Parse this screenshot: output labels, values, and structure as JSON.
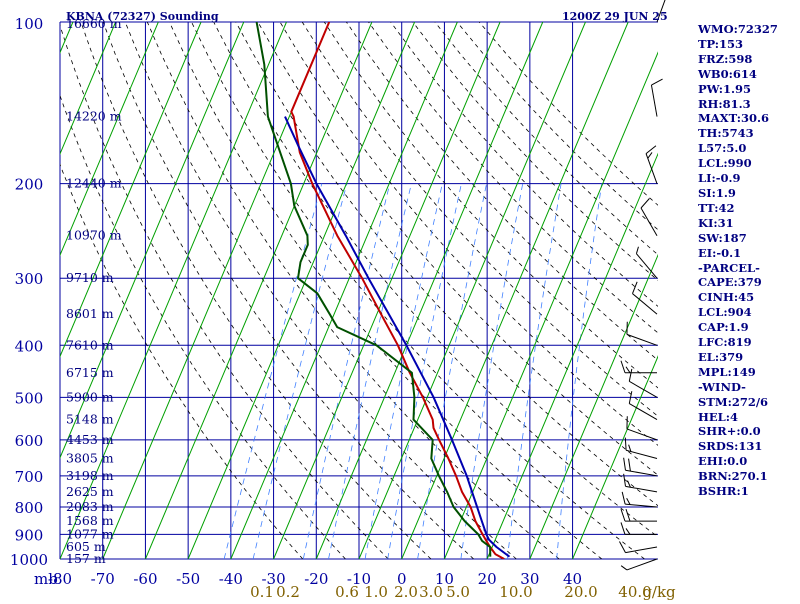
{
  "header": {
    "station": "KBNA (72327) Sounding",
    "time": "1200Z 29 JUN 25"
  },
  "colors": {
    "frame": "#0000a0",
    "isotherm": "#00a000",
    "mixing_ratio": "#4080ff",
    "dry_adiabat": "#000000",
    "temperature": "#c00000",
    "dewpoint": "#005000",
    "parcel": "#0000b0",
    "height_label": "#000080",
    "mixing_label": "#806000"
  },
  "stats": [
    "WMO:72327",
    "TP:153",
    "FRZ:598",
    "WB0:614",
    "PW:1.95",
    "RH:81.3",
    "MAXT:30.6",
    "TH:5743",
    "L57:5.0",
    "LCL:990",
    "LI:-0.9",
    "SI:1.9",
    "TT:42",
    "KI:31",
    "SW:187",
    "EI:-0.1",
    "-PARCEL-",
    "CAPE:379",
    "CINH:45",
    "LCL:904",
    "CAP:1.9",
    "LFC:819",
    "EL:379",
    "MPL:149",
    "-WIND-",
    "STM:272/6",
    "HEL:4",
    "SHR+:0.0",
    "SRDS:131",
    "EHI:0.0",
    "BRN:270.1",
    "BSHR:1"
  ],
  "chart_data": {
    "type": "line",
    "diagram": "skew-t",
    "title": "KBNA (72327) Sounding",
    "pressure_axis": {
      "unit_label": "mb",
      "ticks": [
        100,
        200,
        300,
        400,
        500,
        600,
        700,
        800,
        900,
        1000
      ],
      "range": [
        100,
        1000
      ],
      "scale": "log"
    },
    "temperature_axis": {
      "ticks": [
        -80,
        -70,
        -60,
        -50,
        -40,
        -30,
        -20,
        -10,
        0,
        10,
        20,
        30,
        40
      ],
      "labels": [
        "-80",
        "-70",
        "-60",
        "-50",
        "-40",
        "-30",
        "-20",
        "-10",
        "0",
        "10",
        "20",
        "30",
        "40"
      ]
    },
    "height_labels": [
      {
        "p": 100,
        "text": "16660 m"
      },
      {
        "p": 150,
        "text": "14220 m"
      },
      {
        "p": 200,
        "text": "12440 m"
      },
      {
        "p": 250,
        "text": "10970 m"
      },
      {
        "p": 300,
        "text": "9710 m"
      },
      {
        "p": 350,
        "text": "8601 m"
      },
      {
        "p": 400,
        "text": "7610 m"
      },
      {
        "p": 450,
        "text": "6715 m"
      },
      {
        "p": 500,
        "text": "5900 m"
      },
      {
        "p": 550,
        "text": "5148 m"
      },
      {
        "p": 600,
        "text": "4453 m"
      },
      {
        "p": 650,
        "text": "3805 m"
      },
      {
        "p": 700,
        "text": "3198 m"
      },
      {
        "p": 750,
        "text": "2625 m"
      },
      {
        "p": 800,
        "text": "2083 m"
      },
      {
        "p": 850,
        "text": "1568 m"
      },
      {
        "p": 900,
        "text": "1077 m"
      },
      {
        "p": 950,
        "text": "605 m"
      },
      {
        "p": 1000,
        "text": "157 m"
      }
    ],
    "mixing_ratio_labels": [
      "0.1",
      "0.2",
      "0.6",
      "1.0",
      "2.0",
      "3.0",
      "5.0",
      "10.0",
      "20.0",
      "40.0",
      "g/kg"
    ],
    "series": [
      {
        "key": "temperature",
        "points": [
          [
            1000,
            24
          ],
          [
            980,
            21.5
          ],
          [
            950,
            19.5
          ],
          [
            925,
            18
          ],
          [
            900,
            16.5
          ],
          [
            850,
            13.5
          ],
          [
            800,
            11
          ],
          [
            750,
            7.5
          ],
          [
            700,
            4.5
          ],
          [
            650,
            1
          ],
          [
            600,
            -3
          ],
          [
            570,
            -5.5
          ],
          [
            550,
            -6.5
          ],
          [
            500,
            -11
          ],
          [
            450,
            -16.5
          ],
          [
            400,
            -22
          ],
          [
            350,
            -29
          ],
          [
            300,
            -37
          ],
          [
            250,
            -47
          ],
          [
            200,
            -58
          ],
          [
            175,
            -64
          ],
          [
            150,
            -69
          ],
          [
            147,
            -70
          ],
          [
            130,
            -70
          ],
          [
            100,
            -70
          ]
        ]
      },
      {
        "key": "dewpoint",
        "points": [
          [
            990,
            20.5
          ],
          [
            950,
            19.5
          ],
          [
            925,
            17
          ],
          [
            900,
            15.5
          ],
          [
            850,
            11
          ],
          [
            800,
            7
          ],
          [
            750,
            4
          ],
          [
            700,
            0.5
          ],
          [
            650,
            -3
          ],
          [
            600,
            -4.5
          ],
          [
            550,
            -11
          ],
          [
            500,
            -13
          ],
          [
            450,
            -16
          ],
          [
            400,
            -27
          ],
          [
            370,
            -38
          ],
          [
            350,
            -41
          ],
          [
            320,
            -46
          ],
          [
            300,
            -52
          ],
          [
            280,
            -53
          ],
          [
            260,
            -53
          ],
          [
            250,
            -54
          ],
          [
            220,
            -60
          ],
          [
            200,
            -63
          ],
          [
            150,
            -75
          ],
          [
            120,
            -81
          ],
          [
            100,
            -87
          ]
        ]
      },
      {
        "key": "parcel",
        "points": [
          [
            990,
            25
          ],
          [
            950,
            21
          ],
          [
            920,
            18.5
          ],
          [
            900,
            17.4
          ],
          [
            850,
            15
          ],
          [
            800,
            12.5
          ],
          [
            700,
            7
          ],
          [
            600,
            0
          ],
          [
            500,
            -8.5
          ],
          [
            400,
            -20
          ],
          [
            300,
            -35.5
          ],
          [
            250,
            -45
          ],
          [
            200,
            -57
          ],
          [
            170,
            -65
          ],
          [
            150,
            -71
          ]
        ]
      }
    ],
    "winds": [
      {
        "p": 1000,
        "dir": 250,
        "spd": 5
      },
      {
        "p": 950,
        "dir": 260,
        "spd": 10
      },
      {
        "p": 900,
        "dir": 270,
        "spd": 15
      },
      {
        "p": 850,
        "dir": 270,
        "spd": 20
      },
      {
        "p": 800,
        "dir": 275,
        "spd": 15
      },
      {
        "p": 750,
        "dir": 280,
        "spd": 15
      },
      {
        "p": 700,
        "dir": 280,
        "spd": 20
      },
      {
        "p": 650,
        "dir": 285,
        "spd": 15
      },
      {
        "p": 600,
        "dir": 290,
        "spd": 10
      },
      {
        "p": 550,
        "dir": 300,
        "spd": 10
      },
      {
        "p": 500,
        "dir": 300,
        "spd": 10
      },
      {
        "p": 450,
        "dir": 270,
        "spd": 15
      },
      {
        "p": 400,
        "dir": 290,
        "spd": 10
      },
      {
        "p": 350,
        "dir": 310,
        "spd": 10
      },
      {
        "p": 300,
        "dir": 320,
        "spd": 5
      },
      {
        "p": 250,
        "dir": 330,
        "spd": 10
      },
      {
        "p": 200,
        "dir": 340,
        "spd": 15
      },
      {
        "p": 150,
        "dir": 350,
        "spd": 10
      },
      {
        "p": 100,
        "dir": 20,
        "spd": 10
      }
    ]
  }
}
